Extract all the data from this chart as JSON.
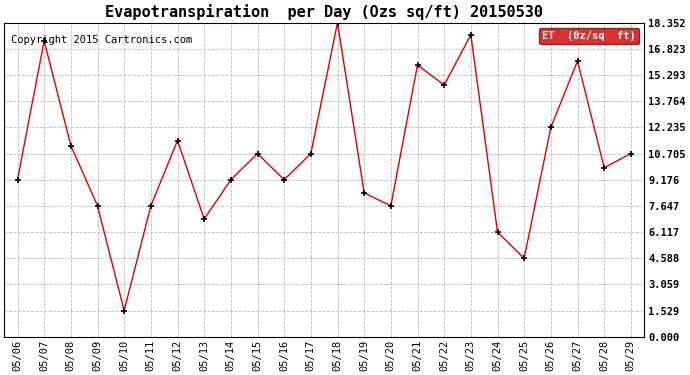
{
  "title": "Evapotranspiration  per Day (Ozs sq/ft) 20150530",
  "copyright": "Copyright 2015 Cartronics.com",
  "legend_label": "ET  (0z/sq  ft)",
  "x_labels": [
    "05/06",
    "05/07",
    "05/08",
    "05/09",
    "05/10",
    "05/11",
    "05/12",
    "05/13",
    "05/14",
    "05/15",
    "05/16",
    "05/17",
    "05/18",
    "05/19",
    "05/20",
    "05/21",
    "05/22",
    "05/23",
    "05/24",
    "05/25",
    "05/26",
    "05/27",
    "05/28",
    "05/29"
  ],
  "y_values": [
    9.176,
    17.294,
    11.176,
    7.647,
    1.529,
    7.647,
    11.47,
    6.882,
    9.176,
    10.705,
    9.176,
    10.705,
    18.352,
    8.412,
    7.647,
    15.882,
    14.706,
    17.647,
    6.117,
    4.588,
    12.235,
    16.117,
    9.882,
    10.705
  ],
  "y_ticks": [
    0.0,
    1.529,
    3.059,
    4.588,
    6.117,
    7.647,
    9.176,
    10.705,
    12.235,
    13.764,
    15.293,
    16.823,
    18.352
  ],
  "line_color": "#dd0000",
  "marker_color": "#000000",
  "bg_color": "#ffffff",
  "plot_bg_color": "#ffffff",
  "grid_color": "#bbbbbb",
  "legend_bg": "#cc0000",
  "legend_text_color": "#ffffff",
  "title_fontsize": 11,
  "tick_fontsize": 7.5,
  "copyright_fontsize": 7.5,
  "ylim": [
    0.0,
    18.352
  ]
}
